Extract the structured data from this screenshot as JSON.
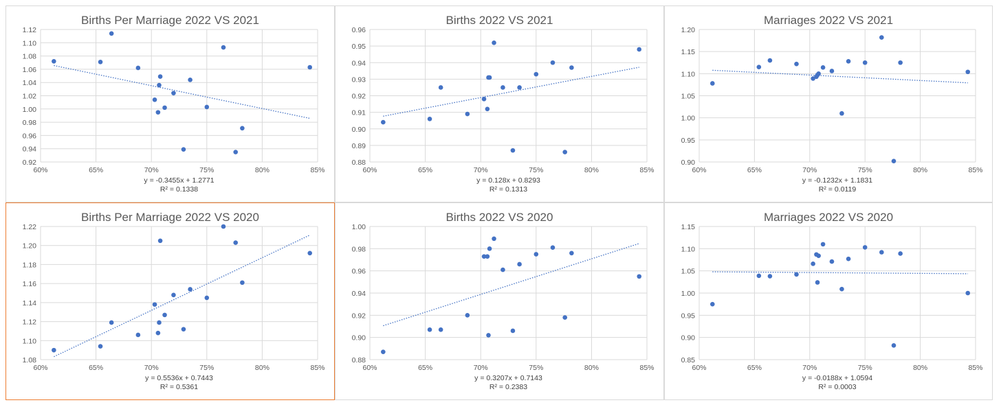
{
  "chart_data": [
    {
      "type": "scatter",
      "title": "Births Per Marriage 2022 VS 2021",
      "xlim": [
        0.6,
        0.85
      ],
      "xticks": [
        0.6,
        0.65,
        0.7,
        0.75,
        0.8,
        0.85
      ],
      "xtick_labels": [
        "60%",
        "65%",
        "70%",
        "75%",
        "80%",
        "85%"
      ],
      "ylim": [
        0.92,
        1.12
      ],
      "yticks": [
        0.92,
        0.94,
        0.96,
        0.98,
        1.0,
        1.02,
        1.04,
        1.06,
        1.08,
        1.1,
        1.12
      ],
      "ytick_labels": [
        "0.92",
        "0.94",
        "0.96",
        "0.98",
        "1.00",
        "1.02",
        "1.04",
        "1.06",
        "1.08",
        "1.10",
        "1.12"
      ],
      "grid": true,
      "points": [
        [
          0.612,
          1.072
        ],
        [
          0.654,
          1.071
        ],
        [
          0.664,
          1.114
        ],
        [
          0.688,
          1.062
        ],
        [
          0.703,
          1.014
        ],
        [
          0.706,
          0.995
        ],
        [
          0.707,
          1.036
        ],
        [
          0.708,
          1.049
        ],
        [
          0.712,
          1.002
        ],
        [
          0.72,
          1.024
        ],
        [
          0.729,
          0.939
        ],
        [
          0.735,
          1.044
        ],
        [
          0.75,
          1.003
        ],
        [
          0.765,
          1.093
        ],
        [
          0.776,
          0.935
        ],
        [
          0.782,
          0.971
        ],
        [
          0.843,
          1.063
        ]
      ],
      "trendline": {
        "slope": -0.3455,
        "intercept": 1.2771,
        "x_range": [
          0.612,
          0.843
        ]
      },
      "equation": "y = -0.3455x + 1.2771",
      "r2": "R² = 0.1338",
      "selected": false
    },
    {
      "type": "scatter",
      "title": "Births 2022 VS 2021",
      "xlim": [
        0.6,
        0.85
      ],
      "xticks": [
        0.6,
        0.65,
        0.7,
        0.75,
        0.8,
        0.85
      ],
      "xtick_labels": [
        "60%",
        "65%",
        "70%",
        "75%",
        "80%",
        "85%"
      ],
      "ylim": [
        0.88,
        0.96
      ],
      "yticks": [
        0.88,
        0.89,
        0.9,
        0.91,
        0.92,
        0.93,
        0.94,
        0.95,
        0.96
      ],
      "ytick_labels": [
        "0.88",
        "0.89",
        "0.90",
        "0.91",
        "0.92",
        "0.93",
        "0.94",
        "0.95",
        "0.96"
      ],
      "grid": true,
      "points": [
        [
          0.612,
          0.904
        ],
        [
          0.654,
          0.906
        ],
        [
          0.664,
          0.925
        ],
        [
          0.688,
          0.909
        ],
        [
          0.703,
          0.918
        ],
        [
          0.706,
          0.912
        ],
        [
          0.707,
          0.931
        ],
        [
          0.708,
          0.931
        ],
        [
          0.712,
          0.952
        ],
        [
          0.72,
          0.925
        ],
        [
          0.729,
          0.887
        ],
        [
          0.735,
          0.925
        ],
        [
          0.75,
          0.933
        ],
        [
          0.765,
          0.94
        ],
        [
          0.776,
          0.886
        ],
        [
          0.782,
          0.937
        ],
        [
          0.843,
          0.948
        ]
      ],
      "trendline": {
        "slope": 0.128,
        "intercept": 0.8293,
        "x_range": [
          0.612,
          0.843
        ]
      },
      "equation": "y = 0.128x + 0.8293",
      "r2": "R² = 0.1313",
      "selected": false
    },
    {
      "type": "scatter",
      "title": "Marriages 2022 VS 2021",
      "xlim": [
        0.6,
        0.85
      ],
      "xticks": [
        0.6,
        0.65,
        0.7,
        0.75,
        0.8,
        0.85
      ],
      "xtick_labels": [
        "60%",
        "65%",
        "70%",
        "75%",
        "80%",
        "85%"
      ],
      "ylim": [
        0.9,
        1.2
      ],
      "yticks": [
        0.9,
        0.95,
        1.0,
        1.05,
        1.1,
        1.15,
        1.2
      ],
      "ytick_labels": [
        "0.90",
        "0.95",
        "1.00",
        "1.05",
        "1.10",
        "1.15",
        "1.20"
      ],
      "grid": true,
      "points": [
        [
          0.612,
          1.078
        ],
        [
          0.654,
          1.115
        ],
        [
          0.664,
          1.13
        ],
        [
          0.688,
          1.122
        ],
        [
          0.703,
          1.089
        ],
        [
          0.706,
          1.093
        ],
        [
          0.707,
          1.097
        ],
        [
          0.708,
          1.1
        ],
        [
          0.712,
          1.114
        ],
        [
          0.72,
          1.106
        ],
        [
          0.729,
          1.01
        ],
        [
          0.735,
          1.128
        ],
        [
          0.75,
          1.125
        ],
        [
          0.765,
          1.182
        ],
        [
          0.776,
          0.902
        ],
        [
          0.782,
          1.125
        ],
        [
          0.843,
          1.104
        ]
      ],
      "trendline": {
        "slope": -0.1232,
        "intercept": 1.1831,
        "x_range": [
          0.612,
          0.843
        ]
      },
      "equation": "y = -0.1232x + 1.1831",
      "r2": "R² = 0.0119",
      "selected": false
    },
    {
      "type": "scatter",
      "title": "Births Per Marriage 2022 VS 2020",
      "xlim": [
        0.6,
        0.85
      ],
      "xticks": [
        0.6,
        0.65,
        0.7,
        0.75,
        0.8,
        0.85
      ],
      "xtick_labels": [
        "60%",
        "65%",
        "70%",
        "75%",
        "80%",
        "85%"
      ],
      "ylim": [
        1.08,
        1.22
      ],
      "yticks": [
        1.08,
        1.1,
        1.12,
        1.14,
        1.16,
        1.18,
        1.2,
        1.22
      ],
      "ytick_labels": [
        "1.08",
        "1.10",
        "1.12",
        "1.14",
        "1.16",
        "1.18",
        "1.20",
        "1.22"
      ],
      "grid": true,
      "points": [
        [
          0.612,
          1.09
        ],
        [
          0.654,
          1.094
        ],
        [
          0.664,
          1.119
        ],
        [
          0.688,
          1.106
        ],
        [
          0.703,
          1.138
        ],
        [
          0.706,
          1.108
        ],
        [
          0.707,
          1.119
        ],
        [
          0.708,
          1.205
        ],
        [
          0.712,
          1.127
        ],
        [
          0.72,
          1.148
        ],
        [
          0.729,
          1.112
        ],
        [
          0.735,
          1.154
        ],
        [
          0.75,
          1.145
        ],
        [
          0.765,
          1.22
        ],
        [
          0.776,
          1.203
        ],
        [
          0.782,
          1.161
        ],
        [
          0.843,
          1.192
        ]
      ],
      "trendline": {
        "slope": 0.5536,
        "intercept": 0.7443,
        "x_range": [
          0.612,
          0.843
        ]
      },
      "equation": "y = 0.5536x + 0.7443",
      "r2": "R² = 0.5361",
      "selected": true
    },
    {
      "type": "scatter",
      "title": "Births 2022 VS 2020",
      "xlim": [
        0.6,
        0.85
      ],
      "xticks": [
        0.6,
        0.65,
        0.7,
        0.75,
        0.8,
        0.85
      ],
      "xtick_labels": [
        "60%",
        "65%",
        "70%",
        "75%",
        "80%",
        "85%"
      ],
      "ylim": [
        0.88,
        1.0
      ],
      "yticks": [
        0.88,
        0.9,
        0.92,
        0.94,
        0.96,
        0.98,
        1.0
      ],
      "ytick_labels": [
        "0.88",
        "0.90",
        "0.92",
        "0.94",
        "0.96",
        "0.98",
        "1.00"
      ],
      "grid": true,
      "points": [
        [
          0.612,
          0.887
        ],
        [
          0.654,
          0.907
        ],
        [
          0.664,
          0.907
        ],
        [
          0.688,
          0.92
        ],
        [
          0.703,
          0.973
        ],
        [
          0.706,
          0.973
        ],
        [
          0.707,
          0.902
        ],
        [
          0.708,
          0.98
        ],
        [
          0.712,
          0.989
        ],
        [
          0.72,
          0.961
        ],
        [
          0.729,
          0.906
        ],
        [
          0.735,
          0.966
        ],
        [
          0.75,
          0.975
        ],
        [
          0.765,
          0.981
        ],
        [
          0.776,
          0.918
        ],
        [
          0.782,
          0.976
        ],
        [
          0.843,
          0.955
        ]
      ],
      "trendline": {
        "slope": 0.3207,
        "intercept": 0.7143,
        "x_range": [
          0.612,
          0.843
        ]
      },
      "equation": "y = 0.3207x + 0.7143",
      "r2": "R² = 0.2383",
      "selected": false
    },
    {
      "type": "scatter",
      "title": "Marriages 2022 VS 2020",
      "xlim": [
        0.6,
        0.85
      ],
      "xticks": [
        0.6,
        0.65,
        0.7,
        0.75,
        0.8,
        0.85
      ],
      "xtick_labels": [
        "60%",
        "65%",
        "70%",
        "75%",
        "80%",
        "85%"
      ],
      "ylim": [
        0.85,
        1.15
      ],
      "yticks": [
        0.85,
        0.9,
        0.95,
        1.0,
        1.05,
        1.1,
        1.15
      ],
      "ytick_labels": [
        "0.85",
        "0.90",
        "0.95",
        "1.00",
        "1.05",
        "1.10",
        "1.15"
      ],
      "grid": true,
      "points": [
        [
          0.612,
          0.975
        ],
        [
          0.654,
          1.039
        ],
        [
          0.664,
          1.038
        ],
        [
          0.688,
          1.042
        ],
        [
          0.703,
          1.066
        ],
        [
          0.706,
          1.087
        ],
        [
          0.707,
          1.024
        ],
        [
          0.708,
          1.084
        ],
        [
          0.712,
          1.11
        ],
        [
          0.72,
          1.071
        ],
        [
          0.729,
          1.009
        ],
        [
          0.735,
          1.077
        ],
        [
          0.75,
          1.103
        ],
        [
          0.765,
          1.092
        ],
        [
          0.776,
          0.882
        ],
        [
          0.782,
          1.089
        ],
        [
          0.843,
          1.0
        ]
      ],
      "trendline": {
        "slope": -0.0188,
        "intercept": 1.0594,
        "x_range": [
          0.612,
          0.843
        ]
      },
      "equation": "y = -0.0188x + 1.0594",
      "r2": "R² = 0.0003",
      "selected": false
    }
  ],
  "colors": {
    "marker": "#4472c4",
    "trendline": "#4472c4",
    "grid": "#d9d9d9",
    "text": "#595959",
    "selection_border": "#ed7d31"
  }
}
